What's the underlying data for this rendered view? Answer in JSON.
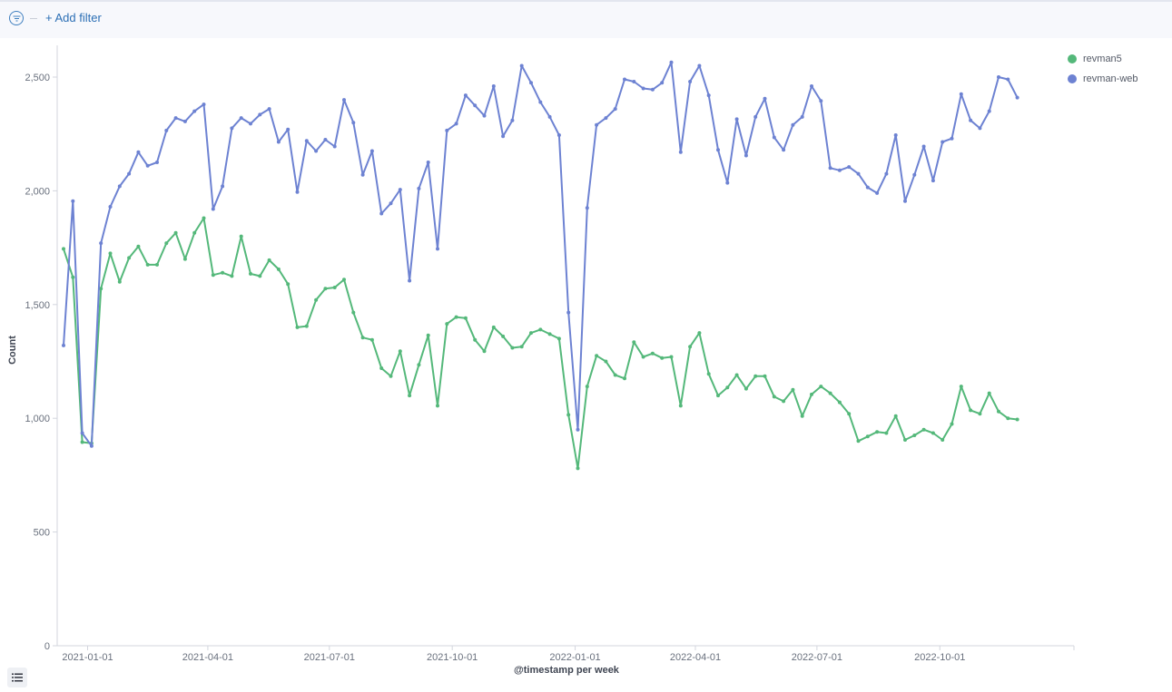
{
  "filter_bar": {
    "add_filter_label": "+ Add filter",
    "filter_icon": "filter-icon"
  },
  "legend_toggle_icon": "list-icon",
  "chart_data": {
    "type": "line",
    "title": "",
    "xlabel": "@timestamp per week",
    "ylabel": "Count",
    "ylim": [
      0,
      2600
    ],
    "yticks": [
      0,
      500,
      1000,
      1500,
      2000,
      2500
    ],
    "ytick_labels": [
      "0",
      "500",
      "1,000",
      "1,500",
      "2,000",
      "2,500"
    ],
    "x_start": "2020-12-14",
    "x_interval_days": 7,
    "xtick_labels": [
      "2021-01-01",
      "2021-04-01",
      "2021-07-01",
      "2021-10-01",
      "2022-01-01",
      "2022-04-01",
      "2022-07-01",
      "2022-10-01"
    ],
    "grid": false,
    "legend_position": "top-right",
    "series": [
      {
        "name": "revman5",
        "color": "#54b87a",
        "values": [
          1745,
          1620,
          895,
          890,
          1570,
          1725,
          1600,
          1705,
          1755,
          1675,
          1675,
          1770,
          1815,
          1700,
          1815,
          1880,
          1630,
          1640,
          1625,
          1800,
          1635,
          1625,
          1695,
          1655,
          1590,
          1400,
          1405,
          1520,
          1570,
          1575,
          1610,
          1465,
          1355,
          1345,
          1220,
          1185,
          1295,
          1100,
          1235,
          1365,
          1055,
          1415,
          1445,
          1440,
          1345,
          1295,
          1400,
          1360,
          1310,
          1315,
          1375,
          1390,
          1370,
          1350,
          1015,
          780,
          1140,
          1275,
          1250,
          1190,
          1175,
          1335,
          1270,
          1285,
          1265,
          1270,
          1055,
          1315,
          1375,
          1195,
          1100,
          1135,
          1190,
          1130,
          1185,
          1185,
          1095,
          1075,
          1125,
          1010,
          1105,
          1140,
          1110,
          1070,
          1020,
          900,
          920,
          940,
          935,
          1010,
          905,
          925,
          950,
          935,
          905,
          975,
          1140,
          1035,
          1020,
          1110,
          1030,
          1000,
          995
        ]
      },
      {
        "name": "revman-web",
        "color": "#6d82d2",
        "values": [
          1320,
          1955,
          935,
          878,
          1770,
          1930,
          2020,
          2075,
          2170,
          2110,
          2125,
          2265,
          2320,
          2305,
          2350,
          2380,
          1920,
          2020,
          2275,
          2320,
          2295,
          2335,
          2360,
          2215,
          2270,
          1995,
          2220,
          2175,
          2225,
          2195,
          2400,
          2300,
          2070,
          2175,
          1900,
          1945,
          2005,
          1605,
          2010,
          2125,
          1745,
          2265,
          2295,
          2420,
          2375,
          2330,
          2460,
          2240,
          2310,
          2550,
          2475,
          2390,
          2325,
          2245,
          1465,
          950,
          1925,
          2290,
          2320,
          2360,
          2490,
          2480,
          2450,
          2445,
          2475,
          2565,
          2170,
          2480,
          2550,
          2420,
          2180,
          2035,
          2315,
          2155,
          2325,
          2405,
          2235,
          2180,
          2290,
          2325,
          2460,
          2395,
          2100,
          2090,
          2105,
          2075,
          2015,
          1990,
          2075,
          2245,
          1955,
          2070,
          2195,
          2045,
          2215,
          2230,
          2425,
          2310,
          2275,
          2350,
          2500,
          2490,
          2410
        ]
      }
    ]
  }
}
